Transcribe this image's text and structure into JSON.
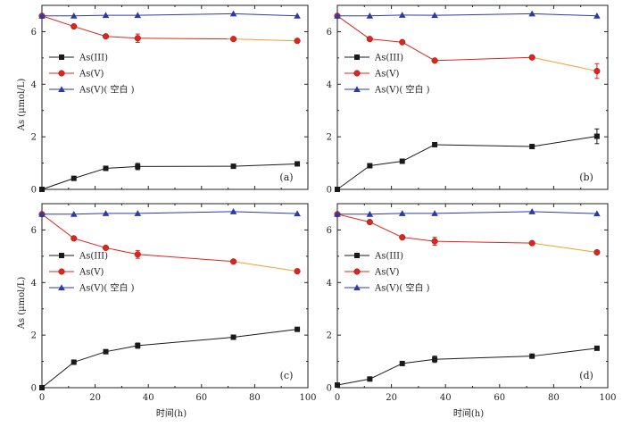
{
  "figure": {
    "ylabel": "As (μmol/L)",
    "xlabel": "时间(h)",
    "legend": [
      "As(III)",
      "As(V)",
      "As(V)( 空白 )"
    ]
  },
  "colors": {
    "as3": "#1a1a1a",
    "as5": "#e0241b",
    "blank": "#2b3aa8",
    "as5_tail": "#f0a030"
  },
  "chart_data": [
    {
      "type": "line",
      "panel_label": "(a)",
      "xlim": [
        0,
        100
      ],
      "ylim": [
        0,
        7
      ],
      "xticks": [
        0,
        20,
        40,
        60,
        80,
        100
      ],
      "yticks": [
        0,
        2,
        4,
        6
      ],
      "show_x_tick_labels": false,
      "legend_position": "left",
      "series": [
        {
          "name": "As(III)",
          "marker": "square",
          "x": [
            0,
            12,
            24,
            36,
            72,
            96
          ],
          "y": [
            0.0,
            0.42,
            0.8,
            0.87,
            0.88,
            0.97
          ],
          "err": [
            0,
            0,
            0,
            0.12,
            0,
            0
          ]
        },
        {
          "name": "As(V)",
          "marker": "circle",
          "x": [
            0,
            12,
            24,
            36,
            72,
            96
          ],
          "y": [
            6.6,
            6.2,
            5.82,
            5.75,
            5.72,
            5.65
          ],
          "err": [
            0,
            0,
            0,
            0.16,
            0,
            0
          ]
        },
        {
          "name": "As(V)( 空白 )",
          "marker": "triangle",
          "x": [
            0,
            12,
            24,
            36,
            72,
            96
          ],
          "y": [
            6.6,
            6.6,
            6.62,
            6.62,
            6.68,
            6.6
          ],
          "err": [
            0,
            0,
            0,
            0,
            0,
            0
          ]
        }
      ]
    },
    {
      "type": "line",
      "panel_label": "(b)",
      "xlim": [
        0,
        100
      ],
      "ylim": [
        0,
        7
      ],
      "xticks": [
        0,
        20,
        40,
        60,
        80,
        100
      ],
      "yticks": [
        0,
        2,
        4,
        6
      ],
      "show_x_tick_labels": false,
      "legend_position": "left",
      "series": [
        {
          "name": "As(III)",
          "marker": "square",
          "x": [
            0,
            12,
            24,
            36,
            72,
            96
          ],
          "y": [
            0.0,
            0.9,
            1.07,
            1.7,
            1.63,
            2.02
          ],
          "err": [
            0,
            0,
            0,
            0,
            0,
            0.28
          ]
        },
        {
          "name": "As(V)",
          "marker": "circle",
          "x": [
            0,
            12,
            24,
            36,
            72,
            96
          ],
          "y": [
            6.6,
            5.72,
            5.6,
            4.9,
            5.02,
            4.5
          ],
          "err": [
            0,
            0,
            0,
            0,
            0,
            0.28
          ]
        },
        {
          "name": "As(V)( 空白 )",
          "marker": "triangle",
          "x": [
            0,
            12,
            24,
            36,
            72,
            96
          ],
          "y": [
            6.6,
            6.6,
            6.63,
            6.62,
            6.68,
            6.6
          ],
          "err": [
            0,
            0,
            0,
            0,
            0,
            0
          ]
        }
      ]
    },
    {
      "type": "line",
      "panel_label": "(c)",
      "xlim": [
        0,
        100
      ],
      "ylim": [
        0,
        7
      ],
      "xticks": [
        0,
        20,
        40,
        60,
        80,
        100
      ],
      "yticks": [
        0,
        2,
        4,
        6
      ],
      "show_x_tick_labels": true,
      "legend_position": "left",
      "series": [
        {
          "name": "As(III)",
          "marker": "square",
          "x": [
            0,
            12,
            24,
            36,
            72,
            96
          ],
          "y": [
            0.0,
            0.97,
            1.37,
            1.6,
            1.92,
            2.22
          ],
          "err": [
            0,
            0,
            0,
            0.1,
            0,
            0
          ]
        },
        {
          "name": "As(V)",
          "marker": "circle",
          "x": [
            0,
            12,
            24,
            36,
            72,
            96
          ],
          "y": [
            6.6,
            5.68,
            5.32,
            5.07,
            4.8,
            4.43
          ],
          "err": [
            0,
            0,
            0,
            0.15,
            0,
            0
          ]
        },
        {
          "name": "As(V)( 空白 )",
          "marker": "triangle",
          "x": [
            0,
            12,
            24,
            36,
            72,
            96
          ],
          "y": [
            6.6,
            6.6,
            6.63,
            6.63,
            6.7,
            6.62
          ],
          "err": [
            0,
            0,
            0,
            0,
            0,
            0
          ]
        }
      ]
    },
    {
      "type": "line",
      "panel_label": "(d)",
      "xlim": [
        0,
        100
      ],
      "ylim": [
        0,
        7
      ],
      "xticks": [
        0,
        20,
        40,
        60,
        80,
        100
      ],
      "yticks": [
        0,
        2,
        4,
        6
      ],
      "show_x_tick_labels": true,
      "legend_position": "left",
      "series": [
        {
          "name": "As(III)",
          "marker": "square",
          "x": [
            0,
            12,
            24,
            36,
            72,
            96
          ],
          "y": [
            0.1,
            0.33,
            0.92,
            1.08,
            1.2,
            1.5
          ],
          "err": [
            0,
            0,
            0,
            0.12,
            0,
            0
          ]
        },
        {
          "name": "As(V)",
          "marker": "circle",
          "x": [
            0,
            12,
            24,
            36,
            72,
            96
          ],
          "y": [
            6.6,
            6.3,
            5.72,
            5.57,
            5.5,
            5.15
          ],
          "err": [
            0,
            0,
            0,
            0.15,
            0,
            0
          ]
        },
        {
          "name": "As(V)( 空白 )",
          "marker": "triangle",
          "x": [
            0,
            12,
            24,
            36,
            72,
            96
          ],
          "y": [
            6.6,
            6.6,
            6.63,
            6.63,
            6.7,
            6.62
          ],
          "err": [
            0,
            0,
            0,
            0,
            0,
            0
          ]
        }
      ]
    }
  ]
}
